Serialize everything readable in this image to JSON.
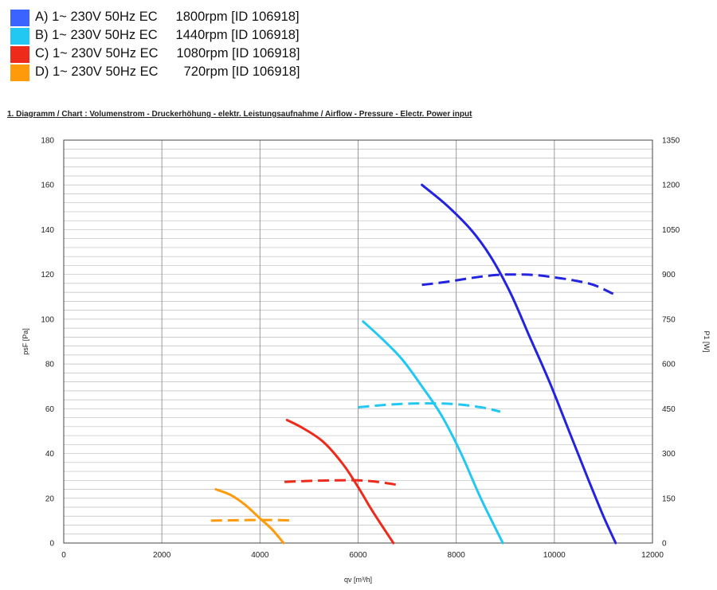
{
  "legend": [
    {
      "letter": "A)",
      "text": "A) 1~ 230V 50Hz EC     1800rpm [ID 106918]",
      "color": "#3b63ff"
    },
    {
      "letter": "B)",
      "text": "B) 1~ 230V 50Hz EC     1440rpm [ID 106918]",
      "color": "#22c8f2"
    },
    {
      "letter": "C)",
      "text": "C) 1~ 230V 50Hz EC     1080rpm [ID 106918]",
      "color": "#ee2a1a"
    },
    {
      "letter": "D)",
      "text": "D) 1~ 230V 50Hz EC       720rpm [ID 106918]",
      "color": "#ff9a0a"
    }
  ],
  "chart_title": "1. Diagramm / Chart :   Volumenstrom - Druckerhöhung - elektr. Leistungsaufnahme / Airflow - Pressure - Electr. Power input",
  "chart_data": {
    "type": "line",
    "xlabel": "qv [m³/h]",
    "ylabel": "psF [Pa]",
    "y2label": "P1 [W]",
    "xlim": [
      0,
      12000
    ],
    "ylim": [
      0,
      180
    ],
    "y2lim": [
      0,
      1350
    ],
    "xticks": [
      "0",
      "2000",
      "4000",
      "6000",
      "8000",
      "10000",
      "12000"
    ],
    "yticks": [
      "0",
      "20",
      "40",
      "60",
      "80",
      "100",
      "120",
      "140",
      "160",
      "180"
    ],
    "y2ticks": [
      "0",
      "150",
      "300",
      "450",
      "600",
      "750",
      "900",
      "1050",
      "1200",
      "1350"
    ],
    "grid": true,
    "series": [
      {
        "color": "#2323e0",
        "pressure": {
          "x": [
            7300,
            7800,
            8300,
            8700,
            9100,
            9500,
            9900,
            10300,
            10700,
            11000,
            11250
          ],
          "y": [
            160,
            151,
            140,
            128,
            112,
            92,
            72,
            50,
            28,
            12,
            0
          ]
        },
        "power": {
          "x": [
            7300,
            7800,
            8300,
            8800,
            9200,
            9600,
            10000,
            10400,
            10800,
            11200
          ],
          "y": [
            865,
            875,
            888,
            898,
            900,
            898,
            890,
            880,
            865,
            835
          ]
        }
      },
      {
        "color": "#22c8f2",
        "pressure": {
          "x": [
            6100,
            6500,
            6900,
            7300,
            7700,
            8100,
            8500,
            8950
          ],
          "y": [
            99,
            91,
            82,
            70,
            57,
            40,
            20,
            0
          ]
        },
        "power": {
          "x": [
            6000,
            6500,
            7000,
            7500,
            8000,
            8500,
            8900
          ],
          "y": [
            455,
            462,
            467,
            468,
            465,
            455,
            440
          ]
        }
      },
      {
        "color": "#ee2a1a",
        "pressure": {
          "x": [
            4550,
            4900,
            5300,
            5700,
            6000,
            6300,
            6720
          ],
          "y": [
            55,
            51,
            45,
            35,
            25,
            14,
            0
          ]
        },
        "power": {
          "x": [
            4500,
            5000,
            5500,
            6000,
            6400,
            6800
          ],
          "y": [
            205,
            208,
            210,
            210,
            205,
            195
          ]
        }
      },
      {
        "color": "#ff9a0a",
        "pressure": {
          "x": [
            3100,
            3400,
            3700,
            4000,
            4250,
            4480
          ],
          "y": [
            24,
            21.5,
            17,
            11,
            6,
            0
          ]
        },
        "power": {
          "x": [
            3000,
            3400,
            3800,
            4200,
            4600
          ],
          "y": [
            75,
            76,
            77,
            77,
            76
          ]
        }
      }
    ]
  }
}
